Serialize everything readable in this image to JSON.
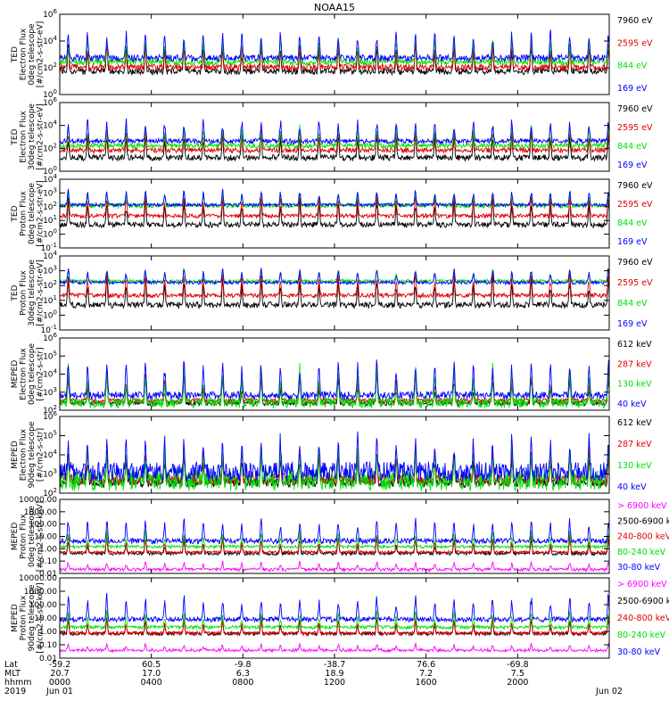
{
  "title": "NOAA15",
  "colors": {
    "black": "#000000",
    "red": "#e00000",
    "green": "#00e000",
    "blue": "#0000ff",
    "magenta": "#ff00ff",
    "frame": "#000000"
  },
  "chart_data": [
    {
      "type": "line",
      "panel": 1,
      "ylabel": [
        "TED",
        "Electron Flux",
        "0deg telescope",
        "[#/cm2-s-str-eV]"
      ],
      "yscale": "log",
      "ylim": [
        1,
        1000000
      ],
      "yticks": [
        {
          "value": 1,
          "label": "10",
          "sup": "0"
        },
        {
          "value": 100,
          "label": "10",
          "sup": "2"
        },
        {
          "value": 10000,
          "label": "10",
          "sup": "4"
        },
        {
          "value": 1000000,
          "label": "10",
          "sup": "6"
        }
      ],
      "series": [
        {
          "name": "7960 eV",
          "color": "#000000",
          "baseline": 30,
          "peaks": [
            300,
            30000,
            3000
          ]
        },
        {
          "name": "2595 eV",
          "color": "#e00000",
          "baseline": 60,
          "peaks": [
            600,
            30000,
            5000
          ]
        },
        {
          "name": "844 eV",
          "color": "#00e000",
          "baseline": 150,
          "peaks": [
            1500,
            60000,
            20000
          ]
        },
        {
          "name": "169 eV",
          "color": "#0000ff",
          "baseline": 300,
          "peaks": [
            3000,
            200000,
            80000
          ]
        }
      ]
    },
    {
      "type": "line",
      "panel": 2,
      "ylabel": [
        "TED",
        "Electron Flux",
        "30deg telescope",
        "[#/cm2-s-str-eV]"
      ],
      "yscale": "log",
      "ylim": [
        1,
        1000000
      ],
      "yticks": [
        {
          "value": 1,
          "label": "10",
          "sup": "0"
        },
        {
          "value": 100,
          "label": "10",
          "sup": "2"
        },
        {
          "value": 10000,
          "label": "10",
          "sup": "4"
        },
        {
          "value": 1000000,
          "label": "10",
          "sup": "6"
        }
      ],
      "series": [
        {
          "name": "7960 eV",
          "color": "#000000",
          "baseline": 8,
          "peaks": [
            100,
            20000,
            2000
          ]
        },
        {
          "name": "2595 eV",
          "color": "#e00000",
          "baseline": 40,
          "peaks": [
            300,
            20000,
            3000
          ]
        },
        {
          "name": "844 eV",
          "color": "#00e000",
          "baseline": 100,
          "peaks": [
            800,
            50000,
            10000
          ]
        },
        {
          "name": "169 eV",
          "color": "#0000ff",
          "baseline": 250,
          "peaks": [
            2000,
            100000,
            50000
          ]
        }
      ]
    },
    {
      "type": "line",
      "panel": 3,
      "ylabel": [
        "TED",
        "Proton Flux",
        "0deg telescope",
        "[#/cm2-s-str-eV]"
      ],
      "yscale": "log",
      "ylim": [
        0.1,
        10000
      ],
      "yticks": [
        {
          "value": 0.1,
          "label": "10",
          "sup": "-1"
        },
        {
          "value": 1,
          "label": "10",
          "sup": "0"
        },
        {
          "value": 10,
          "label": "10",
          "sup": "1"
        },
        {
          "value": 100,
          "label": "10",
          "sup": "2"
        },
        {
          "value": 1000,
          "label": "10",
          "sup": "3"
        },
        {
          "value": 10000,
          "label": "10",
          "sup": "4"
        }
      ],
      "series": [
        {
          "name": "7960 eV",
          "color": "#000000",
          "baseline": 3,
          "peaks": [
            20,
            3000,
            300
          ]
        },
        {
          "name": "2595 eV",
          "color": "#e00000",
          "baseline": 15,
          "peaks": [
            60,
            3000,
            500
          ]
        },
        {
          "name": "844 eV",
          "color": "#00e000",
          "baseline": 80,
          "peaks": [
            400,
            3000,
            1000
          ]
        },
        {
          "name": "169 eV",
          "color": "#0000ff",
          "baseline": 100,
          "peaks": [
            300,
            5000,
            1500
          ]
        }
      ]
    },
    {
      "type": "line",
      "panel": 4,
      "ylabel": [
        "TED",
        "Proton Flux",
        "30deg telescope",
        "[#/cm2-s-str-eV]"
      ],
      "yscale": "log",
      "ylim": [
        0.1,
        10000
      ],
      "yticks": [
        {
          "value": 0.1,
          "label": "10",
          "sup": "-1"
        },
        {
          "value": 1,
          "label": "10",
          "sup": "0"
        },
        {
          "value": 10,
          "label": "10",
          "sup": "1"
        },
        {
          "value": 100,
          "label": "10",
          "sup": "2"
        },
        {
          "value": 1000,
          "label": "10",
          "sup": "3"
        },
        {
          "value": 10000,
          "label": "10",
          "sup": "4"
        }
      ],
      "series": [
        {
          "name": "7960 eV",
          "color": "#000000",
          "baseline": 3,
          "peaks": [
            20,
            2000,
            200
          ]
        },
        {
          "name": "2595 eV",
          "color": "#e00000",
          "baseline": 15,
          "peaks": [
            60,
            3000,
            400
          ]
        },
        {
          "name": "844 eV",
          "color": "#00e000",
          "baseline": 150,
          "peaks": [
            400,
            3000,
            800
          ]
        },
        {
          "name": "169 eV",
          "color": "#0000ff",
          "baseline": 120,
          "peaks": [
            300,
            4000,
            1000
          ]
        }
      ]
    },
    {
      "type": "line",
      "panel": 5,
      "ylabel": [
        "MEPED",
        "Electron Flux",
        "0deg telescope",
        "[#/cm2-s-str]"
      ],
      "yscale": "log",
      "ylim": [
        100,
        1000000
      ],
      "yticks": [
        {
          "value": 100,
          "label": "10",
          "sup": "2"
        },
        {
          "value": 1000,
          "label": "10",
          "sup": "3"
        },
        {
          "value": 10000,
          "label": "10",
          "sup": "4"
        },
        {
          "value": 100000,
          "label": "10",
          "sup": "5"
        },
        {
          "value": 1000000,
          "label": "10",
          "sup": "6"
        }
      ],
      "series": [
        {
          "name": "612 keV",
          "color": "#000000",
          "baseline": 180,
          "peaks": [
            500,
            50000,
            2000
          ]
        },
        {
          "name": "287 keV",
          "color": "#e00000",
          "baseline": 250,
          "peaks": [
            800,
            100000,
            5000
          ]
        },
        {
          "name": "130 keV",
          "color": "#00e000",
          "baseline": 130,
          "peaks": [
            2000,
            200000,
            10000
          ]
        },
        {
          "name": "40 keV",
          "color": "#0000ff",
          "baseline": 400,
          "peaks": [
            3000,
            400000,
            50000
          ]
        }
      ]
    },
    {
      "type": "line",
      "panel": 6,
      "ylabel": [
        "MEPED",
        "Electron Flux",
        "90deg telescope",
        "[#/cm2-s-str]"
      ],
      "yscale": "log",
      "ylim": [
        100,
        1000000
      ],
      "yticks": [
        {
          "value": 100,
          "label": "10",
          "sup": "2"
        },
        {
          "value": 1000,
          "label": "10",
          "sup": "3"
        },
        {
          "value": 10000,
          "label": "10",
          "sup": "4"
        },
        {
          "value": 100000,
          "label": "10",
          "sup": "5"
        },
        {
          "value": 1000000,
          "label": "10",
          "sup": "6"
        }
      ],
      "series": [
        {
          "name": "612 keV",
          "color": "#000000",
          "baseline": 200,
          "peaks": [
            2000,
            50000,
            10000
          ]
        },
        {
          "name": "287 keV",
          "color": "#e00000",
          "baseline": 250,
          "peaks": [
            5000,
            100000,
            30000
          ]
        },
        {
          "name": "130 keV",
          "color": "#00e000",
          "baseline": 130,
          "peaks": [
            20000,
            200000,
            60000
          ]
        },
        {
          "name": "40 keV",
          "color": "#0000ff",
          "baseline": 400,
          "peaks": [
            50000,
            400000,
            200000
          ]
        }
      ]
    },
    {
      "type": "line",
      "panel": 7,
      "ylabel": [
        "MEPED",
        "Proton Flux",
        "0deg telescope",
        "[#/cm2-s-str-keV]"
      ],
      "yscale": "log",
      "ylim": [
        0.01,
        10000
      ],
      "yticks": [
        {
          "value": 0.01,
          "label": "0.01",
          "sup": ""
        },
        {
          "value": 0.1,
          "label": "0.10",
          "sup": ""
        },
        {
          "value": 1,
          "label": "1.00",
          "sup": ""
        },
        {
          "value": 10,
          "label": "10.00",
          "sup": ""
        },
        {
          "value": 100,
          "label": "100.00",
          "sup": ""
        },
        {
          "value": 1000,
          "label": "1000.00",
          "sup": ""
        },
        {
          "value": 10000,
          "label": "10000.00",
          "sup": ""
        }
      ],
      "series": [
        {
          "name": "> 6900 keV",
          "color": "#ff00ff",
          "baseline": 0.015,
          "peaks": [
            0.05,
            0.2,
            0.08
          ]
        },
        {
          "name": "2500-6900 keV",
          "color": "#000000",
          "baseline": 0.3,
          "peaks": [
            1,
            30,
            3
          ]
        },
        {
          "name": "240-800 keV",
          "color": "#e00000",
          "baseline": 0.4,
          "peaks": [
            1,
            40,
            4
          ]
        },
        {
          "name": "80-240 keV",
          "color": "#00e000",
          "baseline": 1.1,
          "peaks": [
            3,
            80,
            10
          ]
        },
        {
          "name": "30-80 keV",
          "color": "#0000ff",
          "baseline": 2.5,
          "peaks": [
            20,
            2000,
            200
          ]
        }
      ]
    },
    {
      "type": "line",
      "panel": 8,
      "ylabel": [
        "MEPED",
        "Proton Flux",
        "90deg telescope",
        "[#/cm2-s-str-keV]"
      ],
      "yscale": "log",
      "ylim": [
        0.01,
        10000
      ],
      "yticks": [
        {
          "value": 0.01,
          "label": "0.01",
          "sup": ""
        },
        {
          "value": 0.1,
          "label": "0.10",
          "sup": ""
        },
        {
          "value": 1,
          "label": "1.00",
          "sup": ""
        },
        {
          "value": 10,
          "label": "10.00",
          "sup": ""
        },
        {
          "value": 100,
          "label": "100.00",
          "sup": ""
        },
        {
          "value": 1000,
          "label": "1000.00",
          "sup": ""
        },
        {
          "value": 10000,
          "label": "10000.00",
          "sup": ""
        }
      ],
      "series": [
        {
          "name": "> 6900 keV",
          "color": "#ff00ff",
          "baseline": 0.03,
          "peaks": [
            0.06,
            0.2,
            0.1
          ]
        },
        {
          "name": "2500-6900 keV",
          "color": "#000000",
          "baseline": 0.5,
          "peaks": [
            1.5,
            30,
            4
          ]
        },
        {
          "name": "240-800 keV",
          "color": "#e00000",
          "baseline": 0.5,
          "peaks": [
            2,
            40,
            5
          ]
        },
        {
          "name": "80-240 keV",
          "color": "#00e000",
          "baseline": 1.5,
          "peaks": [
            5,
            100,
            15
          ]
        },
        {
          "name": "30-80 keV",
          "color": "#0000ff",
          "baseline": 5,
          "peaks": [
            30,
            3000,
            300
          ]
        }
      ]
    }
  ],
  "x_axis": {
    "row_labels": [
      "Lat",
      "MLT",
      "hhmm",
      "2019"
    ],
    "ticks": [
      {
        "hour": 0,
        "lat": "-59.2",
        "mlt": "20.7",
        "hhmm": "0000",
        "date": "Jun 01"
      },
      {
        "hour": 4,
        "lat": "60.5",
        "mlt": "17.0",
        "hhmm": "0400",
        "date": ""
      },
      {
        "hour": 8,
        "lat": "-9.8",
        "mlt": "6.3",
        "hhmm": "0800",
        "date": ""
      },
      {
        "hour": 12,
        "lat": "-38.7",
        "mlt": "18.9",
        "hhmm": "1200",
        "date": ""
      },
      {
        "hour": 16,
        "lat": "76.6",
        "mlt": "7.2",
        "hhmm": "1600",
        "date": ""
      },
      {
        "hour": 20,
        "lat": "-69.8",
        "mlt": "7.5",
        "hhmm": "2000",
        "date": ""
      },
      {
        "hour": 24,
        "lat": "",
        "mlt": "",
        "hhmm": "",
        "date": "Jun 02"
      }
    ],
    "xlim_hours": [
      0,
      24
    ],
    "orbit_period_hours": 1.685
  }
}
